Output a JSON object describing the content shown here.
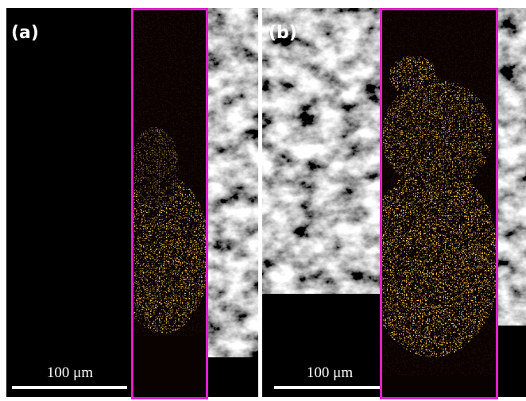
{
  "panels": [
    {
      "label": "(a)",
      "scale_bar": "100 μm"
    },
    {
      "label": "(b)",
      "scale_bar": "100 μm"
    }
  ]
}
